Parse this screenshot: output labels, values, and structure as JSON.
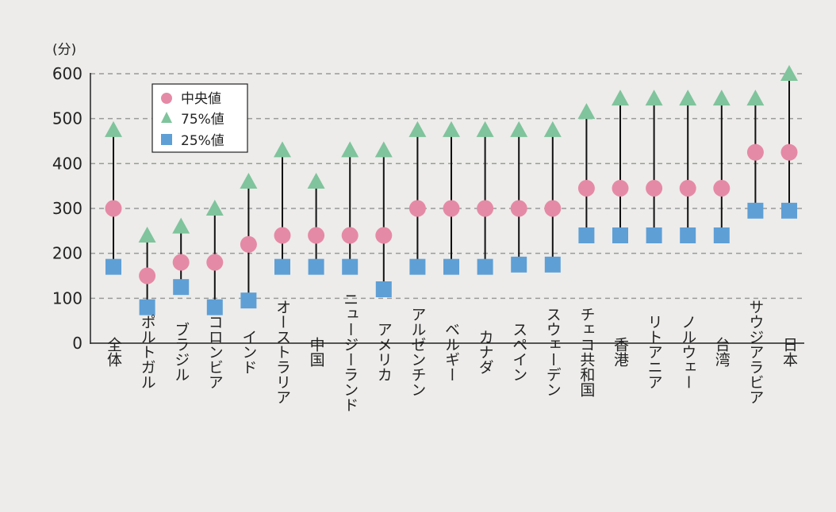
{
  "chart_data": {
    "type": "scatter",
    "unit_label": "(分)",
    "ylim": [
      0,
      600
    ],
    "y_ticks": [
      "0",
      "100",
      "200",
      "300",
      "400",
      "500",
      "600"
    ],
    "grid": "horizontal-dashed",
    "legend_placement": "top-left",
    "categories": [
      "全体",
      "ポルトガル",
      "ブラジル",
      "コロンビア",
      "インド",
      "オーストラリア",
      "中国",
      "ニュージーランド",
      "アメリカ",
      "アルゼンチン",
      "ベルギー",
      "カナダ",
      "スペイン",
      "スウェーデン",
      "チェコ共和国",
      "香港",
      "リトアニア",
      "ノルウェー",
      "台湾",
      "サウジアラビア",
      "日本"
    ],
    "series": [
      {
        "name": "中央値",
        "marker": "circle",
        "color": "#e58aa6",
        "values": [
          300,
          150,
          180,
          180,
          220,
          240,
          240,
          240,
          240,
          300,
          300,
          300,
          300,
          300,
          345,
          345,
          345,
          345,
          345,
          425,
          425
        ]
      },
      {
        "name": "75%値",
        "marker": "triangle",
        "color": "#7fc49c",
        "values": [
          475,
          240,
          260,
          300,
          360,
          430,
          360,
          430,
          430,
          475,
          475,
          475,
          475,
          475,
          515,
          545,
          545,
          545,
          545,
          545,
          600
        ]
      },
      {
        "name": "25%値",
        "marker": "square",
        "color": "#5e9fd6",
        "values": [
          170,
          80,
          125,
          80,
          95,
          170,
          170,
          170,
          120,
          170,
          170,
          170,
          175,
          175,
          240,
          240,
          240,
          240,
          240,
          295,
          295
        ]
      }
    ]
  }
}
